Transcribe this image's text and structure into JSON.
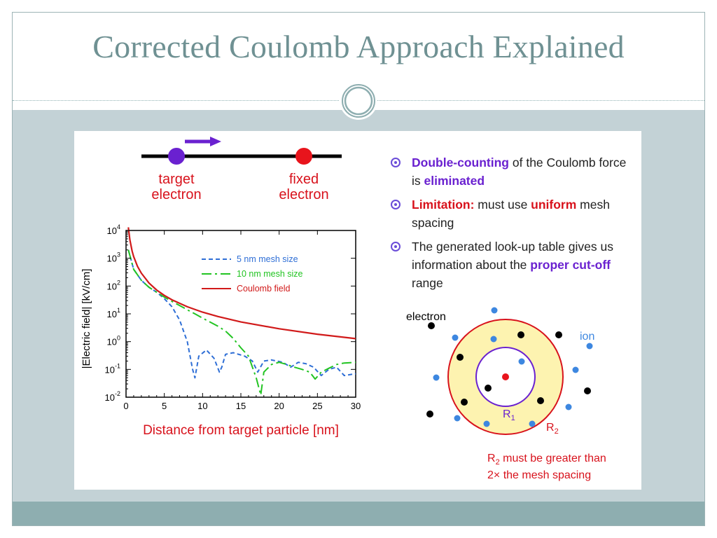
{
  "slide": {
    "title": "Corrected Coulomb Approach Explained"
  },
  "diagram_top": {
    "target_label_line1": "target",
    "target_label_line2": "electron",
    "fixed_label_line1": "fixed",
    "fixed_label_line2": "electron",
    "colors": {
      "target": "#6a21d0",
      "fixed": "#e8141c",
      "label": "#d8121c"
    }
  },
  "bullets": [
    {
      "parts": [
        {
          "text": "Double-counting",
          "style": "purple"
        },
        {
          "text": " of the Coulomb force is ",
          "style": "plain"
        },
        {
          "text": "eliminated",
          "style": "purple"
        }
      ]
    },
    {
      "parts": [
        {
          "text": "Limitation:",
          "style": "red"
        },
        {
          "text": " must use ",
          "style": "plain"
        },
        {
          "text": "uniform",
          "style": "red"
        },
        {
          "text": " mesh spacing",
          "style": "plain"
        }
      ]
    },
    {
      "parts": [
        {
          "text": "The generated look-up table gives us information about the ",
          "style": "plain"
        },
        {
          "text": "proper cut-off",
          "style": "purple"
        },
        {
          "text": " range",
          "style": "plain"
        }
      ]
    }
  ],
  "ring_diagram": {
    "electron_label": "electron",
    "ion_label": "ion",
    "r1_label": "R",
    "r1_sub": "1",
    "r2_label": "R",
    "r2_sub": "2",
    "note_line1_prefix": "R",
    "note_line1_sub": "2",
    "note_line1_rest": " must be greater than",
    "note_line2": "2× the mesh spacing"
  },
  "chart_data": {
    "type": "line",
    "title": "",
    "xlabel": "Distance from target particle [nm]",
    "ylabel": "|Electric field|  [kV/cm]",
    "xlim": [
      0,
      30
    ],
    "ylim": [
      0.01,
      10000
    ],
    "yscale": "log",
    "x_ticks": [
      "0",
      "5",
      "10",
      "15",
      "20",
      "25",
      "30"
    ],
    "y_ticks": [
      {
        "base": "10",
        "exp": "4"
      },
      {
        "base": "10",
        "exp": "3"
      },
      {
        "base": "10",
        "exp": "2"
      },
      {
        "base": "10",
        "exp": "1"
      },
      {
        "base": "10",
        "exp": "0"
      },
      {
        "base": "10",
        "exp": "-1"
      },
      {
        "base": "10",
        "exp": "-2"
      }
    ],
    "legend_position": "top-right",
    "series": [
      {
        "name": "5 nm mesh size",
        "color": "#2f6fd6",
        "dash": "dashed",
        "x": [
          0.3,
          1,
          2,
          3,
          4,
          5,
          6,
          7,
          8,
          8.7,
          9,
          9.5,
          10.5,
          11.5,
          12.2,
          12.5,
          13,
          14,
          15.5,
          16.5,
          17.2,
          18,
          19,
          20.5,
          21.5,
          22.5,
          23.5,
          24.5,
          25.5,
          26.5,
          27.5,
          28.5,
          30
        ],
        "y": [
          2000,
          400,
          160,
          90,
          60,
          35,
          18,
          6,
          1,
          0.1,
          0.05,
          0.3,
          0.5,
          0.25,
          0.08,
          0.12,
          0.35,
          0.4,
          0.3,
          0.2,
          0.08,
          0.2,
          0.22,
          0.18,
          0.12,
          0.18,
          0.16,
          0.12,
          0.06,
          0.1,
          0.12,
          0.06,
          0.07
        ]
      },
      {
        "name": "10 nm mesh size",
        "color": "#22c422",
        "dash": "dashdot",
        "x": [
          0.3,
          1,
          2,
          3,
          4,
          5,
          6,
          7,
          8,
          9,
          10,
          11,
          12,
          13,
          14,
          15,
          16,
          17,
          17.6,
          18,
          19,
          20,
          21,
          22,
          23,
          24,
          24.7,
          25.5,
          26.5,
          27.5,
          28.5,
          30
        ],
        "y": [
          2000,
          400,
          160,
          90,
          60,
          40,
          28,
          20,
          14,
          10,
          7,
          5,
          3.6,
          2.4,
          1.3,
          0.6,
          0.3,
          0.05,
          0.012,
          0.08,
          0.15,
          0.18,
          0.15,
          0.12,
          0.1,
          0.08,
          0.045,
          0.08,
          0.11,
          0.15,
          0.17,
          0.18
        ]
      },
      {
        "name": "Coulomb field",
        "color": "#d11a1a",
        "dash": "solid",
        "x": [
          0.3,
          0.5,
          0.8,
          1,
          1.5,
          2,
          3,
          4,
          5,
          6,
          8,
          10,
          12,
          15,
          20,
          25,
          30
        ],
        "y": [
          13000,
          4600,
          1800,
          1150,
          510,
          290,
          128,
          72,
          46,
          32,
          18,
          11.5,
          8,
          5.1,
          2.9,
          1.85,
          1.28
        ]
      }
    ]
  }
}
